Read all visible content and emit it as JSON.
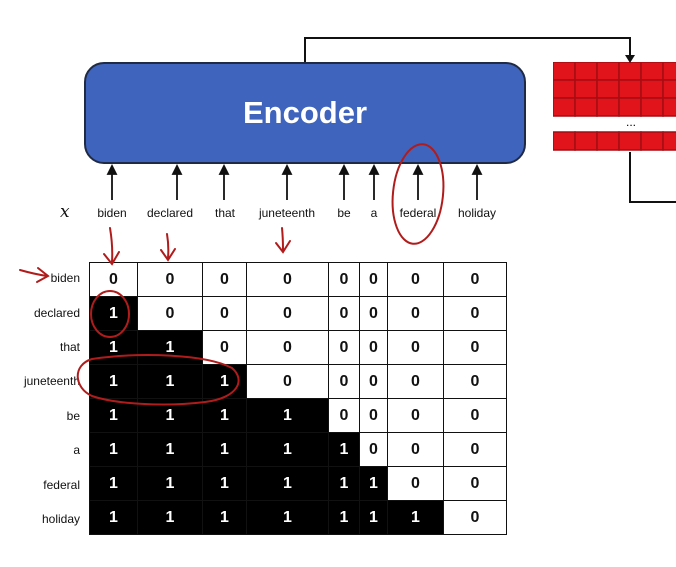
{
  "encoder": {
    "title": "Encoder"
  },
  "input": {
    "symbol": "x",
    "tokens": [
      "biden",
      "declared",
      "that",
      "juneteenth",
      "be",
      "a",
      "federal",
      "holiday"
    ]
  },
  "red_panel": {
    "ellipsis": "..."
  },
  "mask": {
    "row_labels": [
      "biden",
      "declared",
      "that",
      "juneteenth",
      "be",
      "a",
      "federal",
      "holiday"
    ],
    "rows": [
      [
        "0",
        "0",
        "0",
        "0",
        "0",
        "0",
        "0",
        "0"
      ],
      [
        "1",
        "0",
        "0",
        "0",
        "0",
        "0",
        "0",
        "0"
      ],
      [
        "1",
        "1",
        "0",
        "0",
        "0",
        "0",
        "0",
        "0"
      ],
      [
        "1",
        "1",
        "1",
        "0",
        "0",
        "0",
        "0",
        "0"
      ],
      [
        "1",
        "1",
        "1",
        "1",
        "0",
        "0",
        "0",
        "0"
      ],
      [
        "1",
        "1",
        "1",
        "1",
        "1",
        "0",
        "0",
        "0"
      ],
      [
        "1",
        "1",
        "1",
        "1",
        "1",
        "1",
        "0",
        "0"
      ],
      [
        "1",
        "1",
        "1",
        "1",
        "1",
        "1",
        "1",
        "0"
      ]
    ]
  },
  "colors": {
    "encoder_fill": "#3f64be",
    "annotation": "#b01c1c",
    "red_cell": "#e0141a",
    "red_cell_dark": "#a50d12"
  }
}
